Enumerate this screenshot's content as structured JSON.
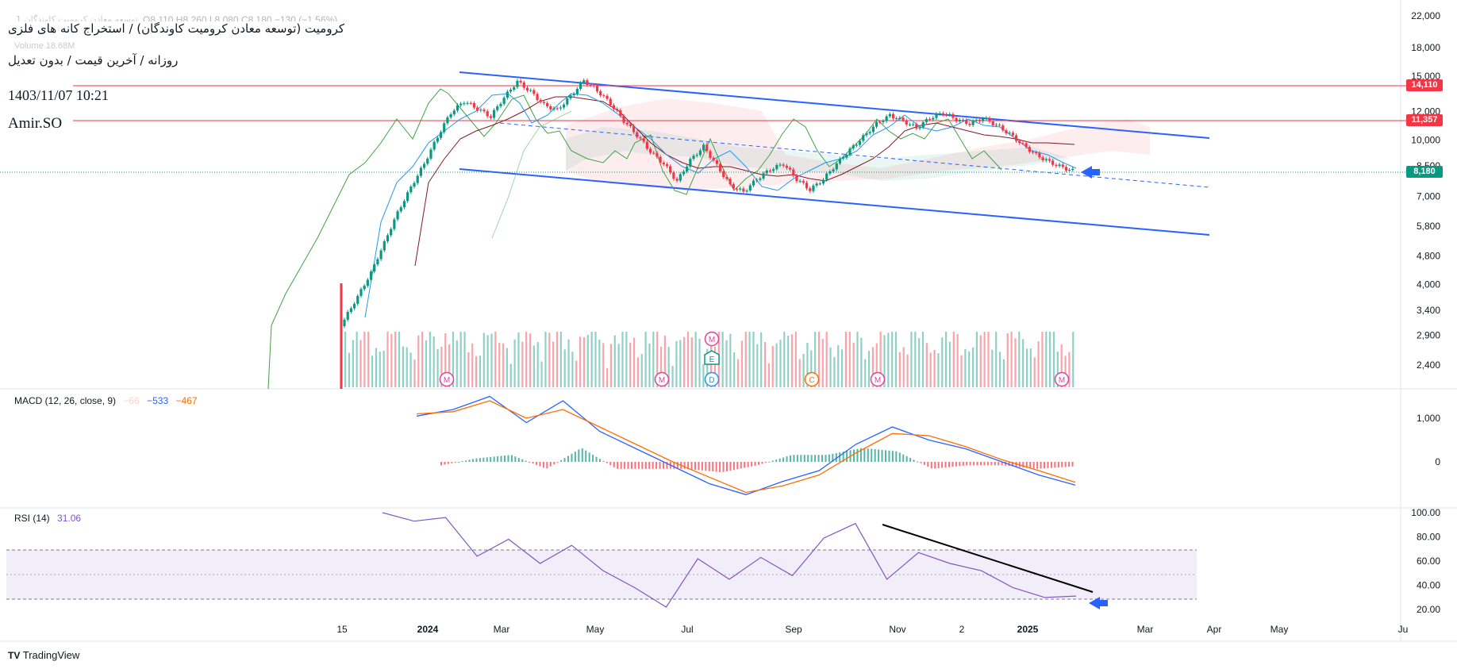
{
  "header": {
    "title": "کرومیت (توسعه معادن کرومیت کاوندگان) / استخراج کانه های فلزی",
    "subtitle": "روزانه / آخرین قیمت / بدون تعدیل",
    "datetime": "1403/11/07 10:21",
    "author": "Amir.SO",
    "faint_ohlc": "O8,110 H8,260 L8,080 C8,180 −130 (−1.56%)",
    "faint_name": "توسعه معادن کرومیت کاوندگان 1",
    "volume_label": "Volume 18.68M"
  },
  "price_tags": {
    "upper": "14,110",
    "middle": "11,357",
    "last": "8,180"
  },
  "panes": {
    "macd": {
      "label": "MACD (12, 26, close, 9)",
      "v1": "−66",
      "v2": "−533",
      "v3": "−467"
    },
    "rsi": {
      "label": "RSI (14)",
      "value": "31.06"
    }
  },
  "footer": {
    "brand": "TradingView",
    "brand_logo": "TV"
  },
  "colors": {
    "bull": "#089981",
    "bear": "#f23645",
    "macd": "#2962ff",
    "signal": "#ff6d00",
    "rsi": "#7e57c2",
    "channel": "#2962ff",
    "hline": "#f23645"
  },
  "chart_data": [
    {
      "type": "candlestick",
      "title": "کرومیت — Daily",
      "ylim": [
        2000,
        22000
      ],
      "y_ticks": [
        "22,000",
        "18,000",
        "15,000",
        "12,000",
        "10,000",
        "8,500",
        "7,000",
        "5,800",
        "4,800",
        "4,000",
        "3,400",
        "2,900",
        "2,400"
      ],
      "x_ticks": [
        "15",
        "2024",
        "Mar",
        "May",
        "Jul",
        "Sep",
        "Nov",
        "2",
        "2025",
        "Mar",
        "Apr",
        "May",
        "Ju"
      ],
      "horizontal_levels": [
        14110,
        11357
      ],
      "last_price": 8180,
      "close_series": [
        3200,
        3700,
        4300,
        5200,
        6300,
        7400,
        8600,
        10200,
        11900,
        12800,
        12200,
        11600,
        13100,
        14500,
        13600,
        12500,
        12100,
        13200,
        14600,
        13700,
        12600,
        11300,
        10300,
        9300,
        8600,
        7700,
        8800,
        9600,
        8500,
        7500,
        7200,
        7800,
        8300,
        8600,
        7800,
        7300,
        7800,
        8600,
        9400,
        10200,
        11100,
        11700,
        11300,
        10800,
        11500,
        11900,
        11400,
        11100,
        11500,
        11000,
        10400,
        9700,
        9100,
        8700,
        8400,
        8180
      ],
      "earnings_markers": [
        "M",
        "M",
        "M",
        "E",
        "D",
        "C",
        "M",
        "M"
      ]
    },
    {
      "type": "line",
      "title": "MACD (12, 26, close, 9)",
      "y_ticks": [
        "1,000",
        "0"
      ],
      "series": [
        {
          "name": "MACD",
          "values": [
            1050,
            1200,
            1500,
            900,
            1400,
            700,
            300,
            -100,
            -500,
            -750,
            -450,
            -200,
            400,
            800,
            500,
            300,
            0,
            -300,
            -533
          ]
        },
        {
          "name": "Signal",
          "values": [
            1100,
            1150,
            1400,
            1000,
            1200,
            800,
            400,
            0,
            -350,
            -700,
            -550,
            -300,
            200,
            650,
            600,
            350,
            50,
            -200,
            -467
          ]
        }
      ]
    },
    {
      "type": "line",
      "title": "RSI (14)",
      "ylim": [
        10,
        100
      ],
      "y_ticks": [
        "100.00",
        "80.00",
        "60.00",
        "40.00",
        "20.00"
      ],
      "bands": [
        30,
        50,
        70
      ],
      "series": [
        {
          "name": "RSI",
          "values": [
            100,
            93,
            96,
            64,
            78,
            58,
            73,
            52,
            38,
            22,
            62,
            45,
            63,
            48,
            79,
            91,
            45,
            67,
            58,
            52,
            38,
            30,
            31.06
          ]
        }
      ]
    }
  ]
}
